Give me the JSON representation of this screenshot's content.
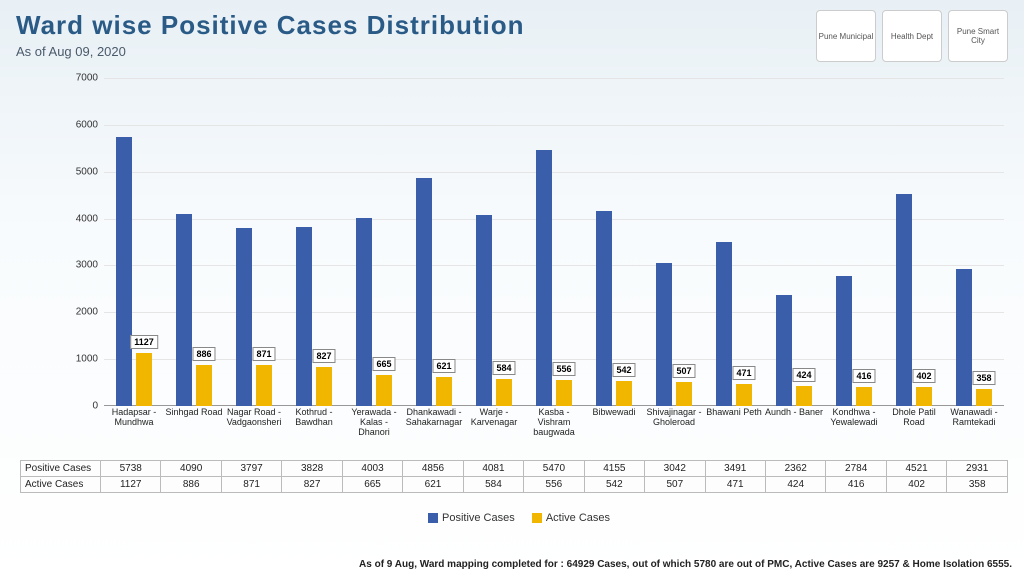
{
  "header": {
    "title": "Ward wise Positive Cases Distribution",
    "subtitle": "As of Aug 09, 2020"
  },
  "logos": [
    "Pune Municipal",
    "Health Dept",
    "Pune Smart City"
  ],
  "chart": {
    "type": "bar",
    "y_max": 7000,
    "y_step": 1000,
    "grid_color": "#e5e5e5",
    "axis_color": "#999999",
    "positive_color": "#3b5eab",
    "active_color": "#f1b600",
    "series_labels": {
      "positive": "Positive Cases",
      "active": "Active Cases"
    },
    "table_row_labels": {
      "positive": "Positive Cases",
      "active": "Active Cases"
    },
    "categories": [
      "Hadapsar - Mundhwa",
      "Sinhgad Road",
      "Nagar Road - Vadgaonsheri",
      "Kothrud - Bawdhan",
      "Yerawada - Kalas - Dhanori",
      "Dhankawadi - Sahakarnagar",
      "Warje - Karvenagar",
      "Kasba - Vishram baugwada",
      "Bibwewadi",
      "Shivajinagar - Gholeroad",
      "Bhawani Peth",
      "Aundh - Baner",
      "Kondhwa - Yewalewadi",
      "Dhole Patil Road",
      "Wanawadi - Ramtekadi"
    ],
    "positive": [
      5738,
      4090,
      3797,
      3828,
      4003,
      4856,
      4081,
      5470,
      4155,
      3042,
      3491,
      2362,
      2784,
      4521,
      2931
    ],
    "active": [
      1127,
      886,
      871,
      827,
      665,
      621,
      584,
      556,
      542,
      507,
      471,
      424,
      416,
      402,
      358
    ]
  },
  "legend": {
    "positive": "Positive Cases",
    "active": "Active Cases"
  },
  "footer": "As of 9 Aug, Ward mapping completed for : 64929 Cases, out of which 5780 are out of PMC, Active Cases are 9257 & Home Isolation 6555."
}
